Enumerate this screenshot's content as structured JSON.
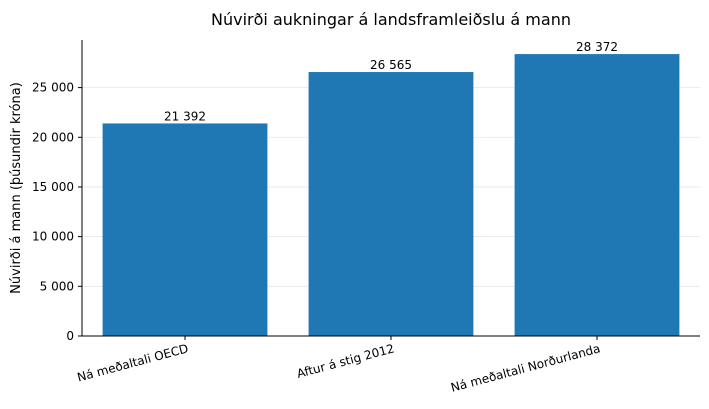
{
  "chart_data": {
    "type": "bar",
    "title": "Núvirði aukningar á landsframleiðslu á mann",
    "xlabel": "",
    "ylabel": "Núvirði á mann (þúsundir króna)",
    "categories": [
      "Ná meðaltali OECD",
      "Aftur á stig 2012",
      "Ná meðaltali Norðurlanda"
    ],
    "values": [
      21392,
      26565,
      28372
    ],
    "value_labels": [
      "21 392",
      "26 565",
      "28 372"
    ],
    "ylim": [
      0,
      29790
    ],
    "yticks": [
      0,
      5000,
      10000,
      15000,
      20000,
      25000
    ],
    "ytick_labels": [
      "0",
      "5 000",
      "10 000",
      "15 000",
      "20 000",
      "25 000"
    ],
    "grid": "horizontal",
    "bar_color": "#1f77b4",
    "grid_color": "#e6e6e6",
    "axis_color": "#000000",
    "category_label_rotation_deg": -15
  }
}
